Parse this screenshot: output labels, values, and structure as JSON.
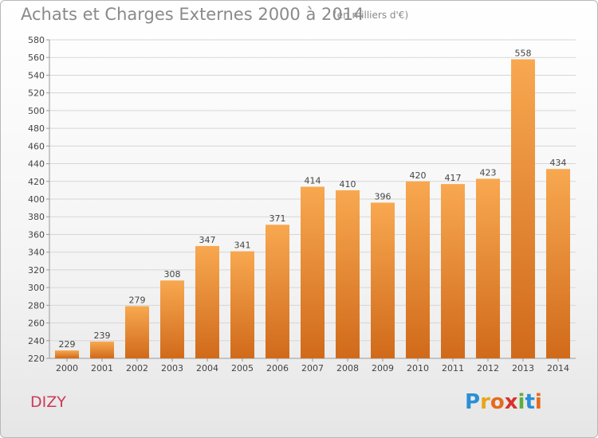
{
  "title": "Achats et Charges Externes 2000 à 2014",
  "subtitle": "(en milliers d'€)",
  "place": "DIZY",
  "logo": {
    "letters": [
      "P",
      "r",
      "o",
      "x",
      "i",
      "t",
      "i"
    ],
    "colors": [
      "#2a8fd6",
      "#e8a51a",
      "#e46b1e",
      "#d8322a",
      "#5fae3a",
      "#2a8fd6",
      "#e46b1e"
    ]
  },
  "colors": {
    "bar_light": "#f8a850",
    "bar_dark": "#d06a1a",
    "grid": "#d6d6d6",
    "axis_text": "#444444"
  },
  "chart_data": {
    "type": "bar",
    "title": "Achats et Charges Externes 2000 à 2014",
    "subtitle": "(en milliers d'€)",
    "categories": [
      "2000",
      "2001",
      "2002",
      "2003",
      "2004",
      "2005",
      "2006",
      "2007",
      "2008",
      "2009",
      "2010",
      "2011",
      "2012",
      "2013",
      "2014"
    ],
    "values": [
      229,
      239,
      279,
      308,
      347,
      341,
      371,
      414,
      410,
      396,
      420,
      417,
      423,
      558,
      434
    ],
    "ylim": [
      220,
      580
    ],
    "ytick_step": 20,
    "grid": true,
    "xlabel": "",
    "ylabel": ""
  }
}
